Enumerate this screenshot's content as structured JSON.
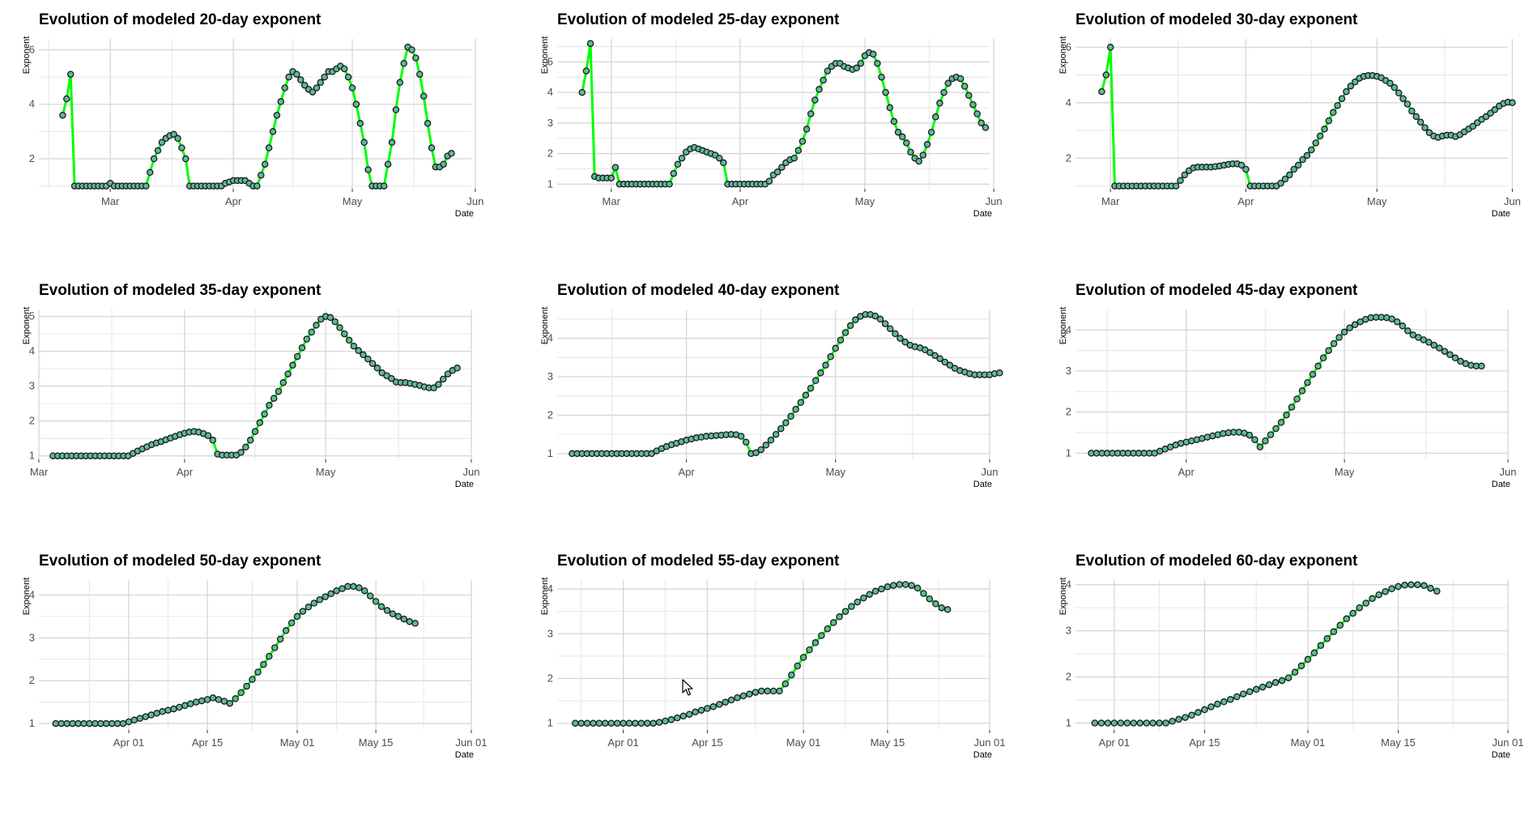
{
  "chart_data": [
    {
      "type": "line",
      "title": "Evolution of modeled 20-day exponent",
      "xlabel": "Date",
      "ylabel": "Exponent",
      "x_start": "2020-02-18",
      "x_step_days": 1,
      "xlim": [
        "2020-02-12",
        "2020-05-31"
      ],
      "ylim": [
        0.9,
        6.4
      ],
      "xticks": [
        {
          "date": "2020-03-01",
          "label": "Mar"
        },
        {
          "date": "2020-04-01",
          "label": "Apr"
        },
        {
          "date": "2020-05-01",
          "label": "May"
        },
        {
          "date": "2020-06-01",
          "label": "Jun"
        }
      ],
      "yticks": [
        2,
        4,
        6
      ],
      "line_color": "#00ff00",
      "point_color": "#5fb99a",
      "y": [
        3.6,
        4.2,
        5.1,
        1,
        1,
        1,
        1,
        1,
        1,
        1,
        1,
        1,
        1.1,
        1,
        1,
        1,
        1,
        1,
        1,
        1,
        1,
        1,
        1.5,
        2,
        2.3,
        2.6,
        2.75,
        2.85,
        2.9,
        2.75,
        2.4,
        2,
        1,
        1,
        1,
        1,
        1,
        1,
        1,
        1,
        1,
        1.1,
        1.15,
        1.2,
        1.2,
        1.2,
        1.2,
        1.1,
        1,
        1,
        1.4,
        1.8,
        2.4,
        3,
        3.6,
        4.1,
        4.6,
        5,
        5.2,
        5.1,
        4.9,
        4.7,
        4.55,
        4.45,
        4.6,
        4.8,
        5,
        5.2,
        5.2,
        5.3,
        5.4,
        5.3,
        5,
        4.6,
        4,
        3.3,
        2.6,
        1.6,
        1,
        1,
        1,
        1,
        1.8,
        2.6,
        3.8,
        4.8,
        5.5,
        6.1,
        6,
        5.7,
        5.1,
        4.3,
        3.3,
        2.4,
        1.7,
        1.7,
        1.8,
        2.1,
        2.2
      ]
    },
    {
      "type": "line",
      "title": "Evolution of modeled 25-day exponent",
      "xlabel": "Date",
      "ylabel": "Exponent",
      "x_start": "2020-02-23",
      "x_step_days": 1,
      "xlim": [
        "2020-02-17",
        "2020-05-31"
      ],
      "ylim": [
        0.85,
        5.75
      ],
      "xticks": [
        {
          "date": "2020-03-01",
          "label": "Mar"
        },
        {
          "date": "2020-04-01",
          "label": "Apr"
        },
        {
          "date": "2020-05-01",
          "label": "May"
        },
        {
          "date": "2020-06-01",
          "label": "Jun"
        }
      ],
      "yticks": [
        1,
        2,
        3,
        4,
        5
      ],
      "line_color": "#00ff00",
      "point_color": "#5fb99a",
      "y": [
        4,
        4.7,
        5.6,
        1.25,
        1.2,
        1.2,
        1.2,
        1.2,
        1.55,
        1,
        1,
        1,
        1,
        1,
        1,
        1,
        1,
        1,
        1,
        1,
        1,
        1,
        1.35,
        1.65,
        1.85,
        2.05,
        2.15,
        2.2,
        2.15,
        2.1,
        2.05,
        2,
        1.95,
        1.85,
        1.7,
        1,
        1,
        1,
        1,
        1,
        1,
        1,
        1,
        1,
        1,
        1.1,
        1.3,
        1.4,
        1.55,
        1.7,
        1.8,
        1.85,
        2.1,
        2.4,
        2.8,
        3.3,
        3.75,
        4.1,
        4.4,
        4.7,
        4.85,
        4.95,
        4.95,
        4.85,
        4.8,
        4.75,
        4.8,
        4.95,
        5.2,
        5.3,
        5.25,
        4.95,
        4.5,
        4,
        3.5,
        3.05,
        2.7,
        2.55,
        2.35,
        2.05,
        1.85,
        1.75,
        1.95,
        2.3,
        2.7,
        3.2,
        3.65,
        4,
        4.3,
        4.45,
        4.5,
        4.45,
        4.2,
        3.9,
        3.6,
        3.3,
        3,
        2.85
      ]
    },
    {
      "type": "line",
      "title": "Evolution of modeled 30-day exponent",
      "xlabel": "Date",
      "ylabel": "Exponent",
      "x_start": "2020-02-28",
      "x_step_days": 1,
      "xlim": [
        "2020-02-22",
        "2020-05-31"
      ],
      "ylim": [
        0.9,
        6.3
      ],
      "xticks": [
        {
          "date": "2020-03-01",
          "label": "Mar"
        },
        {
          "date": "2020-04-01",
          "label": "Apr"
        },
        {
          "date": "2020-05-01",
          "label": "May"
        },
        {
          "date": "2020-06-01",
          "label": "Jun"
        }
      ],
      "yticks": [
        2,
        4,
        6
      ],
      "line_color": "#00ff00",
      "point_color": "#5fb99a",
      "y": [
        4.4,
        5,
        6,
        1,
        1,
        1,
        1,
        1,
        1,
        1,
        1,
        1,
        1,
        1,
        1,
        1,
        1,
        1,
        1.2,
        1.4,
        1.55,
        1.65,
        1.68,
        1.68,
        1.68,
        1.68,
        1.7,
        1.72,
        1.75,
        1.78,
        1.8,
        1.8,
        1.75,
        1.6,
        1,
        1,
        1,
        1,
        1,
        1,
        1,
        1.1,
        1.25,
        1.4,
        1.6,
        1.75,
        1.95,
        2.1,
        2.3,
        2.55,
        2.8,
        3.05,
        3.35,
        3.65,
        3.9,
        4.15,
        4.4,
        4.6,
        4.75,
        4.88,
        4.95,
        4.98,
        4.98,
        4.95,
        4.9,
        4.8,
        4.7,
        4.55,
        4.35,
        4.15,
        3.95,
        3.7,
        3.5,
        3.3,
        3.1,
        2.92,
        2.8,
        2.75,
        2.8,
        2.83,
        2.83,
        2.78,
        2.85,
        2.95,
        3.05,
        3.15,
        3.28,
        3.4,
        3.5,
        3.62,
        3.75,
        3.88,
        3.97,
        4.02,
        4
      ]
    },
    {
      "type": "line",
      "title": "Evolution of modeled 35-day exponent",
      "xlabel": "Date",
      "ylabel": "Exponent",
      "x_start": "2020-03-04",
      "x_step_days": 1,
      "xlim": [
        "2020-03-01",
        "2020-06-01"
      ],
      "ylim": [
        0.9,
        5.2
      ],
      "xticks": [
        {
          "date": "2020-03-01",
          "label": "Mar"
        },
        {
          "date": "2020-04-01",
          "label": "Apr"
        },
        {
          "date": "2020-05-01",
          "label": "May"
        },
        {
          "date": "2020-06-01",
          "label": "Jun"
        }
      ],
      "yticks": [
        1,
        2,
        3,
        4,
        5
      ],
      "line_color": "#00ff00",
      "point_color": "#5fb99a",
      "y": [
        1,
        1,
        1,
        1,
        1,
        1,
        1,
        1,
        1,
        1,
        1,
        1,
        1,
        1,
        1,
        1,
        1,
        1.07,
        1.14,
        1.2,
        1.26,
        1.32,
        1.37,
        1.41,
        1.46,
        1.51,
        1.56,
        1.61,
        1.65,
        1.68,
        1.7,
        1.68,
        1.64,
        1.58,
        1.45,
        1.05,
        1.02,
        1.02,
        1.02,
        1.02,
        1.1,
        1.25,
        1.45,
        1.7,
        1.95,
        2.2,
        2.45,
        2.65,
        2.85,
        3.1,
        3.35,
        3.6,
        3.85,
        4.1,
        4.35,
        4.55,
        4.75,
        4.92,
        5,
        4.97,
        4.85,
        4.68,
        4.5,
        4.32,
        4.15,
        4.02,
        3.9,
        3.78,
        3.65,
        3.52,
        3.38,
        3.3,
        3.22,
        3.12,
        3.1,
        3.1,
        3.08,
        3.05,
        3.02,
        2.98,
        2.95,
        2.95,
        3.05,
        3.2,
        3.35,
        3.45,
        3.52
      ]
    },
    {
      "type": "line",
      "title": "Evolution of modeled 40-day exponent",
      "xlabel": "Date",
      "ylabel": "Exponent",
      "x_start": "2020-03-09",
      "x_step_days": 1,
      "xlim": [
        "2020-03-06",
        "2020-06-01"
      ],
      "ylim": [
        0.85,
        4.75
      ],
      "xticks": [
        {
          "date": "2020-04-01",
          "label": "Apr"
        },
        {
          "date": "2020-05-01",
          "label": "May"
        },
        {
          "date": "2020-06-01",
          "label": "Jun"
        }
      ],
      "yticks": [
        1,
        2,
        3,
        4
      ],
      "line_color": "#00ff00",
      "point_color": "#5fb99a",
      "y": [
        1,
        1,
        1,
        1,
        1,
        1,
        1,
        1,
        1,
        1,
        1,
        1,
        1,
        1,
        1,
        1,
        1,
        1.07,
        1.13,
        1.18,
        1.23,
        1.27,
        1.31,
        1.35,
        1.38,
        1.41,
        1.43,
        1.45,
        1.46,
        1.47,
        1.48,
        1.49,
        1.5,
        1.49,
        1.45,
        1.3,
        1,
        1.02,
        1.1,
        1.22,
        1.35,
        1.5,
        1.65,
        1.8,
        1.97,
        2.15,
        2.33,
        2.52,
        2.7,
        2.9,
        3.1,
        3.3,
        3.52,
        3.74,
        3.95,
        4.15,
        4.33,
        4.48,
        4.57,
        4.62,
        4.62,
        4.58,
        4.5,
        4.38,
        4.25,
        4.12,
        4,
        3.9,
        3.82,
        3.78,
        3.75,
        3.7,
        3.63,
        3.55,
        3.47,
        3.38,
        3.3,
        3.22,
        3.16,
        3.12,
        3.08,
        3.05,
        3.05,
        3.05,
        3.05,
        3.08,
        3.1
      ]
    },
    {
      "type": "line",
      "title": "Evolution of modeled 45-day exponent",
      "xlabel": "Date",
      "ylabel": "Exponent",
      "x_start": "2020-03-14",
      "x_step_days": 1,
      "xlim": [
        "2020-03-11",
        "2020-06-01"
      ],
      "ylim": [
        0.85,
        4.5
      ],
      "xticks": [
        {
          "date": "2020-04-01",
          "label": "Apr"
        },
        {
          "date": "2020-05-01",
          "label": "May"
        },
        {
          "date": "2020-06-01",
          "label": "Jun"
        }
      ],
      "yticks": [
        1,
        2,
        3,
        4
      ],
      "line_color": "#00ff00",
      "point_color": "#5fb99a",
      "y": [
        1,
        1,
        1,
        1,
        1,
        1,
        1,
        1,
        1,
        1,
        1,
        1,
        1,
        1.05,
        1.1,
        1.15,
        1.2,
        1.24,
        1.27,
        1.3,
        1.33,
        1.36,
        1.39,
        1.42,
        1.45,
        1.48,
        1.5,
        1.51,
        1.51,
        1.49,
        1.44,
        1.33,
        1.15,
        1.3,
        1.45,
        1.6,
        1.75,
        1.93,
        2.12,
        2.32,
        2.52,
        2.72,
        2.92,
        3.12,
        3.32,
        3.5,
        3.67,
        3.82,
        3.95,
        4.05,
        4.13,
        4.2,
        4.26,
        4.3,
        4.31,
        4.31,
        4.3,
        4.27,
        4.2,
        4.1,
        3.98,
        3.88,
        3.82,
        3.76,
        3.7,
        3.63,
        3.56,
        3.48,
        3.4,
        3.32,
        3.24,
        3.18,
        3.14,
        3.12,
        3.12
      ]
    },
    {
      "type": "line",
      "title": "Evolution of modeled 50-day exponent",
      "xlabel": "Date",
      "ylabel": "Exponent",
      "x_start": "2020-03-19",
      "x_step_days": 1,
      "xlim": [
        "2020-03-16",
        "2020-06-01"
      ],
      "ylim": [
        0.85,
        4.35
      ],
      "xticks": [
        {
          "date": "2020-04-01",
          "label": "Apr 01"
        },
        {
          "date": "2020-04-15",
          "label": "Apr 15"
        },
        {
          "date": "2020-05-01",
          "label": "May 01"
        },
        {
          "date": "2020-05-15",
          "label": "May 15"
        },
        {
          "date": "2020-06-01",
          "label": "Jun 01"
        }
      ],
      "yticks": [
        1,
        2,
        3,
        4
      ],
      "line_color": "#00ff00",
      "point_color": "#5fb99a",
      "y": [
        1,
        1,
        1,
        1,
        1,
        1,
        1,
        1,
        1,
        1,
        1,
        1,
        1,
        1.04,
        1.08,
        1.12,
        1.16,
        1.2,
        1.24,
        1.28,
        1.31,
        1.34,
        1.38,
        1.42,
        1.46,
        1.5,
        1.53,
        1.56,
        1.6,
        1.56,
        1.52,
        1.47,
        1.58,
        1.72,
        1.87,
        2.03,
        2.2,
        2.38,
        2.57,
        2.77,
        2.97,
        3.17,
        3.35,
        3.5,
        3.62,
        3.72,
        3.81,
        3.89,
        3.96,
        4.03,
        4.1,
        4.15,
        4.2,
        4.2,
        4.17,
        4.1,
        3.98,
        3.85,
        3.73,
        3.64,
        3.56,
        3.5,
        3.44,
        3.38,
        3.34
      ]
    },
    {
      "type": "line",
      "title": "Evolution of modeled 55-day exponent",
      "xlabel": "Date",
      "ylabel": "Exponent",
      "x_start": "2020-03-24",
      "x_step_days": 1,
      "xlim": [
        "2020-03-21",
        "2020-06-01"
      ],
      "ylim": [
        0.85,
        4.2
      ],
      "xticks": [
        {
          "date": "2020-04-01",
          "label": "Apr 01"
        },
        {
          "date": "2020-04-15",
          "label": "Apr 15"
        },
        {
          "date": "2020-05-01",
          "label": "May 01"
        },
        {
          "date": "2020-05-15",
          "label": "May 15"
        },
        {
          "date": "2020-06-01",
          "label": "Jun 01"
        }
      ],
      "yticks": [
        1,
        2,
        3,
        4
      ],
      "line_color": "#00ff00",
      "point_color": "#5fb99a",
      "y": [
        1,
        1,
        1,
        1,
        1,
        1,
        1,
        1,
        1,
        1,
        1,
        1,
        1,
        1,
        1.02,
        1.05,
        1.08,
        1.12,
        1.16,
        1.2,
        1.25,
        1.29,
        1.33,
        1.37,
        1.42,
        1.47,
        1.52,
        1.57,
        1.61,
        1.65,
        1.69,
        1.72,
        1.72,
        1.72,
        1.72,
        1.88,
        2.08,
        2.28,
        2.47,
        2.64,
        2.8,
        2.96,
        3.11,
        3.25,
        3.38,
        3.5,
        3.61,
        3.71,
        3.8,
        3.88,
        3.95,
        4,
        4.05,
        4.08,
        4.1,
        4.1,
        4.08,
        4.02,
        3.9,
        3.78,
        3.67,
        3.58,
        3.54
      ]
    },
    {
      "type": "line",
      "title": "Evolution of modeled 60-day exponent",
      "xlabel": "Date",
      "ylabel": "Exponent",
      "x_start": "2020-03-29",
      "x_step_days": 1,
      "xlim": [
        "2020-03-26",
        "2020-06-01"
      ],
      "ylim": [
        0.85,
        4.1
      ],
      "xticks": [
        {
          "date": "2020-04-01",
          "label": "Apr 01"
        },
        {
          "date": "2020-04-15",
          "label": "Apr 15"
        },
        {
          "date": "2020-05-01",
          "label": "May 01"
        },
        {
          "date": "2020-05-15",
          "label": "May 15"
        },
        {
          "date": "2020-06-01",
          "label": "Jun 01"
        }
      ],
      "yticks": [
        1,
        2,
        3,
        4
      ],
      "line_color": "#00ff00",
      "point_color": "#5fb99a",
      "y": [
        1,
        1,
        1,
        1,
        1,
        1,
        1,
        1,
        1,
        1,
        1,
        1,
        1.04,
        1.08,
        1.12,
        1.17,
        1.23,
        1.29,
        1.35,
        1.41,
        1.46,
        1.51,
        1.57,
        1.63,
        1.68,
        1.73,
        1.78,
        1.83,
        1.88,
        1.92,
        1.98,
        2.1,
        2.24,
        2.38,
        2.52,
        2.68,
        2.83,
        2.98,
        3.12,
        3.26,
        3.38,
        3.5,
        3.6,
        3.7,
        3.78,
        3.85,
        3.91,
        3.96,
        3.99,
        4,
        4,
        3.98,
        3.92,
        3.86
      ]
    }
  ]
}
